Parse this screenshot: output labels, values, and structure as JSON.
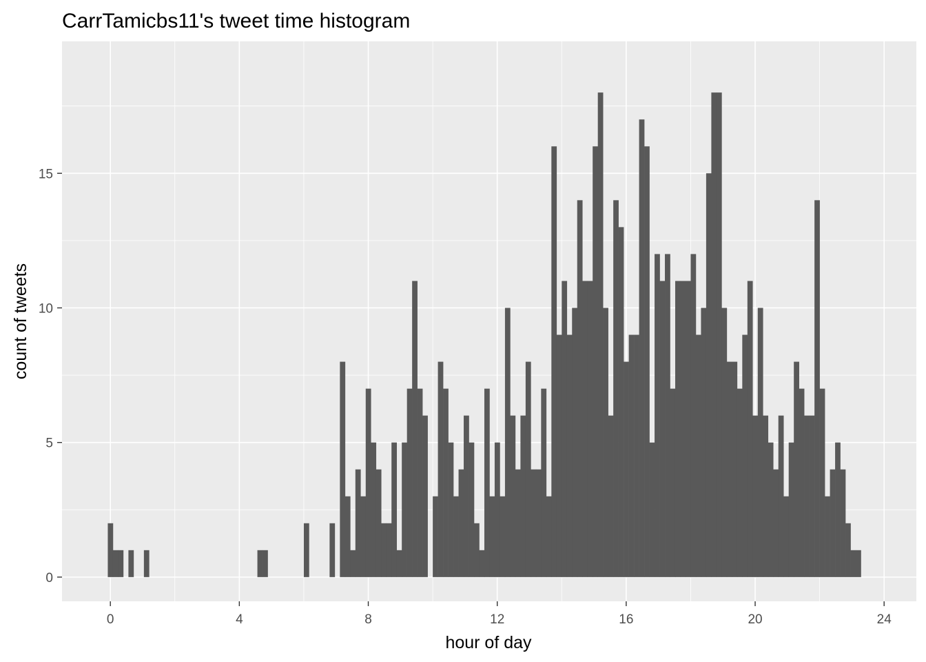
{
  "chart_data": {
    "type": "bar",
    "title": "CarrTamicbs11's tweet time histogram",
    "xlabel": "hour of day",
    "ylabel": "count of tweets",
    "xlim": [
      -1.5,
      25.0
    ],
    "ylim": [
      -0.9,
      19.9
    ],
    "x_ticks": [
      0,
      4,
      8,
      12,
      16,
      20,
      24
    ],
    "y_ticks": [
      0,
      5,
      10,
      15
    ],
    "bin_width": 0.16,
    "bin_start": -0.08,
    "counts": [
      2,
      1,
      1,
      0,
      1,
      0,
      0,
      1,
      0,
      0,
      0,
      0,
      0,
      0,
      0,
      0,
      0,
      0,
      0,
      0,
      0,
      0,
      0,
      0,
      0,
      0,
      0,
      0,
      0,
      1,
      1,
      0,
      0,
      0,
      0,
      0,
      0,
      0,
      2,
      0,
      0,
      0,
      0,
      2,
      0,
      8,
      3,
      1,
      4,
      3,
      7,
      5,
      4,
      2,
      2,
      5,
      1,
      5,
      7,
      11,
      7,
      6,
      0,
      3,
      8,
      7,
      5,
      3,
      4,
      6,
      5,
      2,
      1,
      7,
      3,
      5,
      3,
      10,
      6,
      4,
      6,
      8,
      4,
      4,
      7,
      3,
      16,
      9,
      11,
      9,
      10,
      14,
      11,
      11,
      16,
      18,
      10,
      6,
      14,
      13,
      8,
      9,
      9,
      17,
      16,
      5,
      12,
      11,
      12,
      7,
      11,
      11,
      11,
      12,
      9,
      10,
      15,
      18,
      18,
      10,
      8,
      8,
      7,
      9,
      11,
      6,
      10,
      6,
      5,
      4,
      6,
      3,
      5,
      8,
      7,
      6,
      6,
      14,
      7,
      3,
      4,
      5,
      4,
      2,
      1,
      1
    ],
    "grid": true,
    "colors": {
      "bar": "#595959",
      "panel": "#ebebeb",
      "grid": "#ffffff",
      "ticks": "#333333",
      "tick_text": "#4d4d4d"
    }
  }
}
